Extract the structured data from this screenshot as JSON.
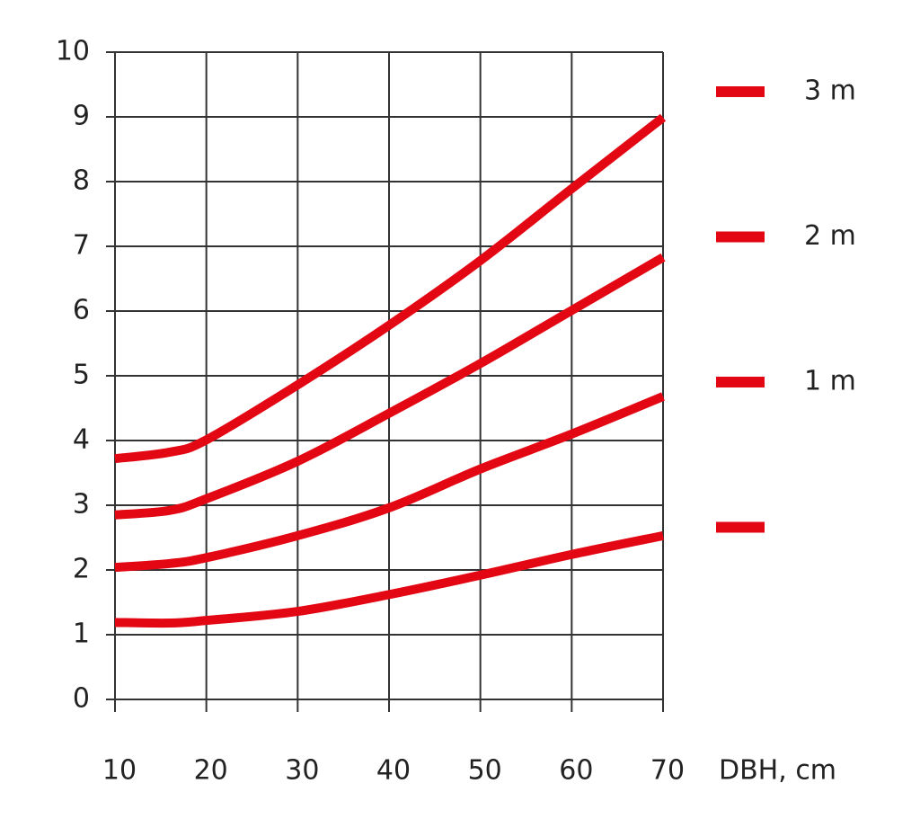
{
  "chart_data": {
    "type": "line",
    "x_label": "DBH, cm",
    "x": [
      10,
      16,
      20,
      30,
      40,
      50,
      60,
      70
    ],
    "series": [
      {
        "name": "3 m",
        "color": "#e30613",
        "values": [
          3.72,
          3.82,
          4.01,
          4.86,
          5.78,
          6.78,
          7.89,
          8.99
        ]
      },
      {
        "name": "2 m",
        "color": "#e30613",
        "values": [
          2.85,
          2.92,
          3.1,
          3.68,
          4.42,
          5.19,
          6.01,
          6.83
        ]
      },
      {
        "name": "1 m",
        "color": "#e30613",
        "values": [
          2.04,
          2.1,
          2.19,
          2.53,
          2.96,
          3.56,
          4.1,
          4.68
        ]
      },
      {
        "color": "#e30613",
        "values": [
          1.19,
          1.18,
          1.22,
          1.36,
          1.62,
          1.92,
          2.24,
          2.53
        ]
      }
    ],
    "xlim": [
      10,
      70
    ],
    "xticks": [
      10,
      20,
      30,
      40,
      50,
      60,
      70
    ],
    "ylim": [
      0,
      10
    ],
    "yticks": [
      0,
      1,
      2,
      3,
      4,
      5,
      6,
      7,
      8,
      9,
      10
    ],
    "grid": true
  }
}
